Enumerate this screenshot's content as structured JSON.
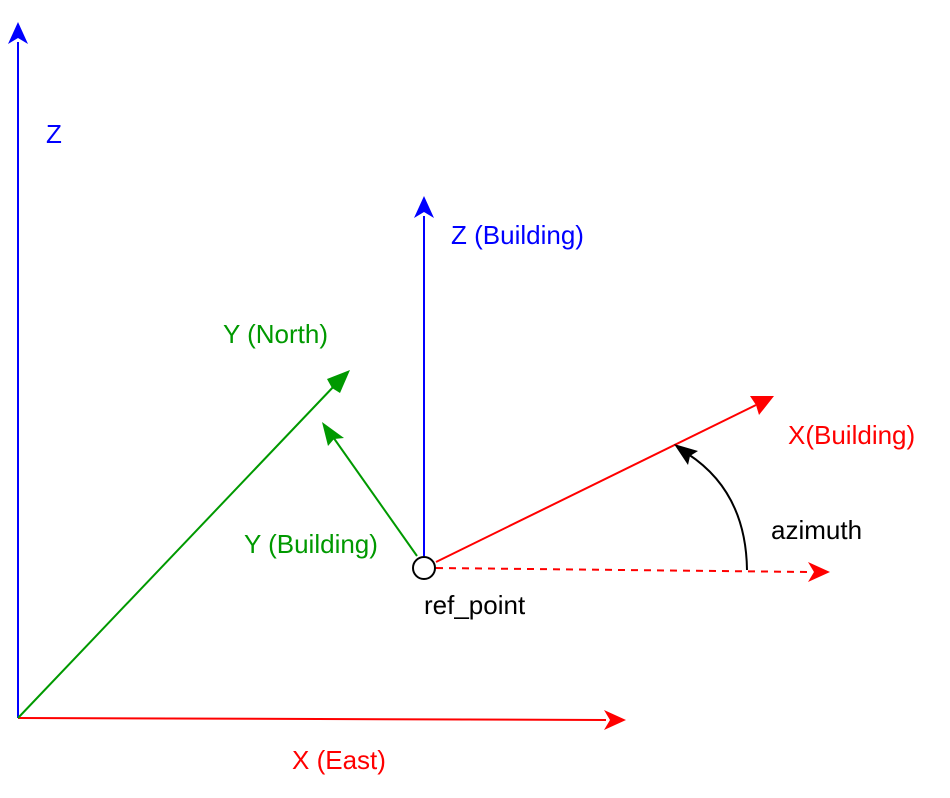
{
  "labels": {
    "z_global": "Z",
    "z_building": "Z (Building)",
    "y_north": "Y (North)",
    "y_building": "Y (Building)",
    "x_building": "X(Building)",
    "azimuth": "azimuth",
    "ref_point": "ref_point",
    "x_east": "X (East)"
  },
  "colors": {
    "x_axis": "#ff0000",
    "y_axis": "#009900",
    "z_axis": "#0000ff",
    "azimuth_arc": "#000000",
    "text": "#000000"
  }
}
